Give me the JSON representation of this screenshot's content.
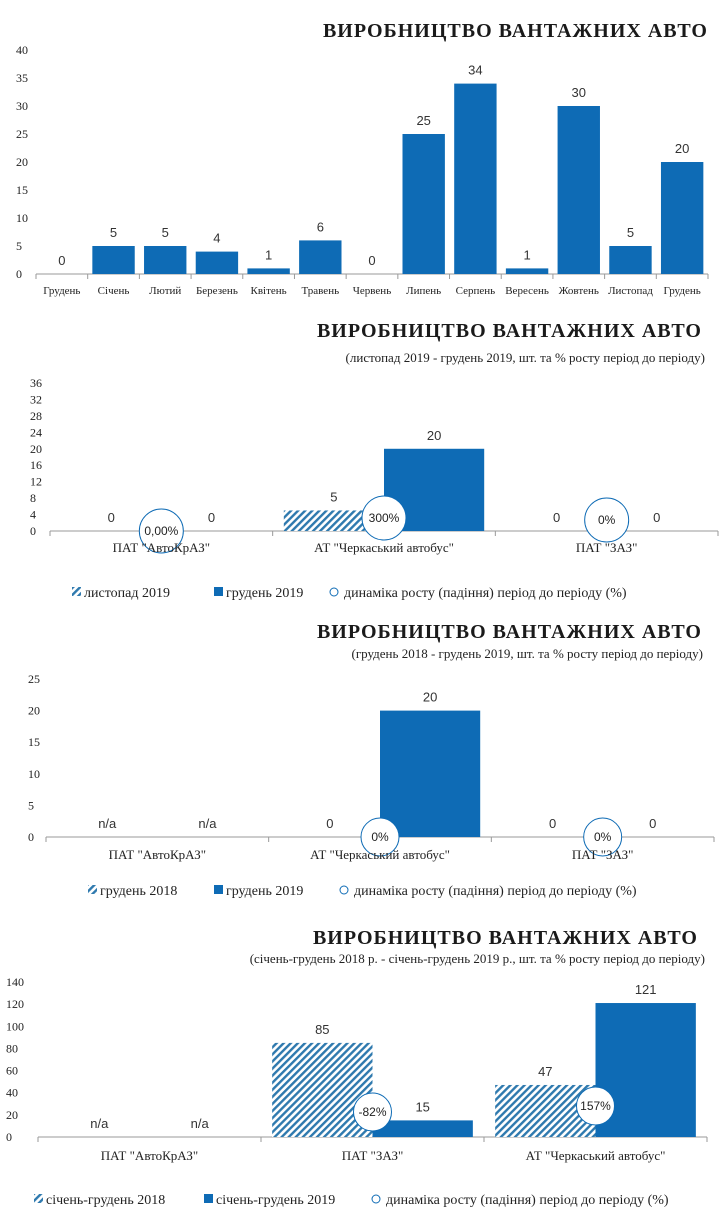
{
  "colors": {
    "primary": "#0E6BB5",
    "hatch": "#2E79AE",
    "axis": "#9A9A9A"
  },
  "chart_data": [
    {
      "type": "bar",
      "title": "ВИРОБНИЦТВО ВАНТАЖНИХ АВТО",
      "subtitle": "",
      "categories": [
        "Грудень",
        "Січень",
        "Лютий",
        "Березень",
        "Квітень",
        "Травень",
        "Червень",
        "Липень",
        "Серпень",
        "Вересень",
        "Жовтень",
        "Листопад",
        "Грудень"
      ],
      "values": [
        0,
        5,
        5,
        4,
        1,
        6,
        0,
        25,
        34,
        1,
        30,
        5,
        20
      ],
      "ylim": [
        0,
        40
      ],
      "yticks": [
        0,
        5,
        10,
        15,
        20,
        25,
        30,
        35,
        40
      ],
      "legend": []
    },
    {
      "type": "bar",
      "title": "ВИРОБНИЦТВО ВАНТАЖНИХ АВТО",
      "subtitle": "(листопад 2019 - грудень 2019, шт. та % росту період до періоду)",
      "categories": [
        "ПАТ \"АвтоКрАЗ\"",
        "АТ \"Черкаський автобус\"",
        "ПАТ \"ЗАЗ\""
      ],
      "series": [
        {
          "name": "листопад 2019",
          "values": [
            0,
            5,
            0
          ],
          "labels": [
            "0",
            "5",
            "0"
          ]
        },
        {
          "name": "грудень 2019",
          "values": [
            0,
            20,
            0
          ],
          "labels": [
            "0",
            "20",
            "0"
          ]
        }
      ],
      "growth": {
        "name": "динаміка росту (падіння) період до періоду (%)",
        "labels": [
          "0,00%",
          "300%",
          "0%"
        ]
      },
      "ylim": [
        0,
        36
      ],
      "yticks": [
        0,
        4,
        8,
        12,
        16,
        20,
        24,
        28,
        32,
        36
      ]
    },
    {
      "type": "bar",
      "title": "ВИРОБНИЦТВО ВАНТАЖНИХ АВТО",
      "subtitle": "(грудень 2018 - грудень 2019, шт. та % росту період до періоду)",
      "categories": [
        "ПАТ \"АвтоКрАЗ\"",
        "АТ \"Черкаський автобус\"",
        "ПАТ \"ЗАЗ\""
      ],
      "series": [
        {
          "name": "грудень 2018",
          "values": [
            0,
            0,
            0
          ],
          "labels": [
            "n/a",
            "0",
            "0"
          ]
        },
        {
          "name": "грудень 2019",
          "values": [
            0,
            20,
            0
          ],
          "labels": [
            "n/a",
            "20",
            "0"
          ]
        }
      ],
      "growth": {
        "name": "динаміка росту (падіння) період до періоду (%)",
        "labels": [
          "",
          "0%",
          "0%"
        ]
      },
      "ylim": [
        0,
        25
      ],
      "yticks": [
        0,
        5,
        10,
        15,
        20,
        25
      ]
    },
    {
      "type": "bar",
      "title": "ВИРОБНИЦТВО ВАНТАЖНИХ АВТО",
      "subtitle": "(січень-грудень 2018 р. - січень-грудень 2019 р., шт. та % росту період до періоду)",
      "categories": [
        "ПАТ \"АвтоКрАЗ\"",
        "ПАТ \"ЗАЗ\"",
        "АТ \"Черкаський автобус\""
      ],
      "series": [
        {
          "name": "січень-грудень 2018",
          "values": [
            0,
            85,
            47
          ],
          "labels": [
            "n/a",
            "85",
            "47"
          ]
        },
        {
          "name": "січень-грудень 2019",
          "values": [
            0,
            15,
            121
          ],
          "labels": [
            "n/a",
            "15",
            "121"
          ]
        }
      ],
      "growth": {
        "name": "динаміка росту (падіння) період до періоду (%)",
        "labels": [
          "",
          "-82%",
          "157%"
        ]
      },
      "ylim": [
        0,
        140
      ],
      "yticks": [
        0,
        20,
        40,
        60,
        80,
        100,
        120,
        140
      ]
    }
  ]
}
